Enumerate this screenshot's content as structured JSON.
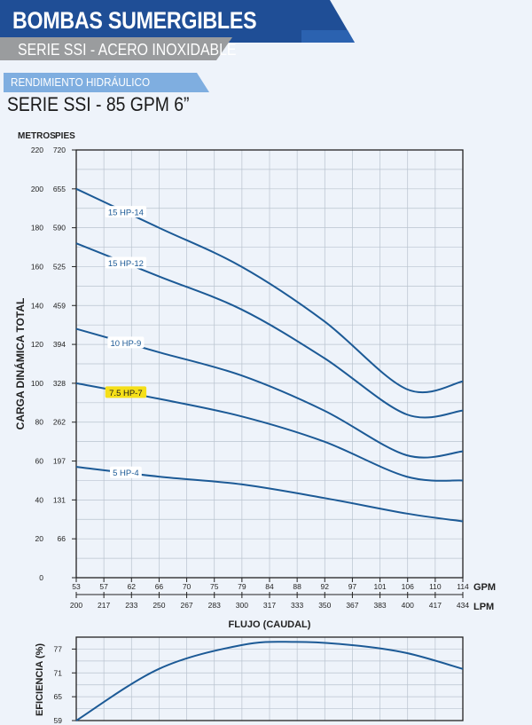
{
  "header": {
    "title": "BOMBAS SUMERGIBLES",
    "subtitle": "SERIE SSI - ACERO INOXIDABLE",
    "section": "RENDIMIENTO HIDRÁULICO",
    "series": "SERIE SSI - 85 GPM 6”"
  },
  "colors": {
    "navy": "#1f4e96",
    "line": "#1c5a96",
    "gray": "#9a9c9e",
    "light_blue": "#7faee0",
    "highlight": "#f5df19"
  },
  "chart_data": [
    {
      "type": "line",
      "ylabel": "CARGA DINÁMICA TOTAL",
      "y_unit_left": "METROS",
      "y_unit_right": "PIES",
      "xlabel": "FLUJO (CAUDAL)",
      "x_unit_top": "GPM",
      "x_unit_bottom": "LPM",
      "ylim": [
        0,
        220
      ],
      "y_ticks_metros": [
        "220",
        "200",
        "180",
        "160",
        "140",
        "120",
        "100",
        "80",
        "60",
        "40",
        "20",
        "0"
      ],
      "y_ticks_pies": [
        "720",
        "655",
        "590",
        "525",
        "459",
        "394",
        "328",
        "262",
        "197",
        "131",
        "66",
        ""
      ],
      "gpm_ticks": [
        "53",
        "57",
        "62",
        "66",
        "70",
        "75",
        "79",
        "84",
        "88",
        "92",
        "97",
        "101",
        "106",
        "110",
        "114"
      ],
      "lpm_ticks": [
        "200",
        "217",
        "233",
        "250",
        "267",
        "283",
        "300",
        "317",
        "333",
        "350",
        "367",
        "383",
        "400",
        "417",
        "434"
      ],
      "grid": true,
      "x": [
        200,
        250,
        300,
        350,
        400,
        434
      ],
      "series": [
        {
          "name": "15 HP-14",
          "values": [
            200,
            180,
            160,
            132,
            97,
            101
          ]
        },
        {
          "name": "15 HP-12",
          "values": [
            172,
            155,
            138,
            113,
            84,
            86
          ]
        },
        {
          "name": "10 HP-9",
          "values": [
            128,
            116,
            104,
            86,
            63,
            65
          ]
        },
        {
          "name": "7.5 HP-7",
          "values": [
            100,
            92,
            83,
            70,
            52,
            50
          ]
        },
        {
          "name": "5 HP-4",
          "values": [
            57,
            52,
            48,
            41,
            33,
            29
          ]
        }
      ],
      "label_series": [
        "15 HP-14",
        "15 HP-12",
        "10 HP-9",
        "7.5 HP-7",
        "5 HP-4"
      ],
      "highlighted_series": "7.5 HP-7"
    },
    {
      "type": "line",
      "ylabel": "EFICIENCIA (%)",
      "ylim": [
        59,
        80
      ],
      "y_ticks": [
        "77",
        "71",
        "65",
        "59"
      ],
      "x": [
        200,
        250,
        300,
        333,
        367,
        400,
        434
      ],
      "values": [
        59,
        72,
        78,
        78.8,
        78,
        76,
        72
      ]
    }
  ]
}
